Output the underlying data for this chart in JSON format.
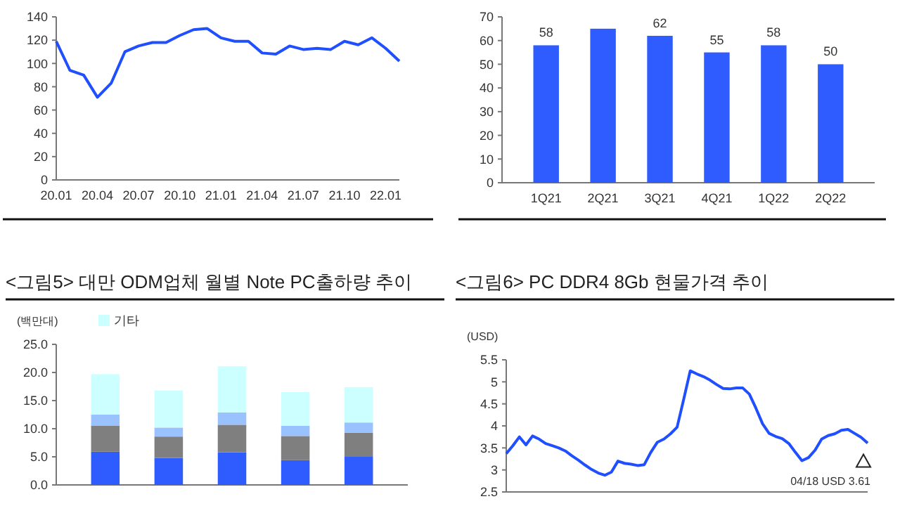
{
  "chart_data": [
    {
      "type": "line",
      "categories": [
        "20.01",
        null,
        null,
        "20.04",
        null,
        null,
        "20.07",
        null,
        null,
        "20.10",
        null,
        null,
        "21.01",
        null,
        null,
        "21.04",
        null,
        null,
        "21.07",
        null,
        null,
        "21.10",
        null,
        null,
        "22.01",
        null
      ],
      "series": [
        {
          "color": "#1f4fff",
          "values": [
            119,
            94,
            90,
            71,
            83,
            110,
            115,
            118,
            118,
            124,
            129,
            130,
            122,
            119,
            119,
            109,
            108,
            115,
            112,
            113,
            112,
            119,
            116,
            122,
            113,
            102
          ]
        }
      ],
      "ylim": [
        0,
        140
      ],
      "yticks": [
        0,
        20,
        40,
        60,
        80,
        100,
        120,
        140
      ],
      "grid": false,
      "legend": false
    },
    {
      "type": "bar",
      "categories": [
        "1Q21",
        "2Q21",
        "3Q21",
        "4Q21",
        "1Q22",
        "2Q22"
      ],
      "values": [
        58,
        65,
        62,
        55,
        58,
        50
      ],
      "color": "#2f5cff",
      "value_labels": [
        "58",
        null,
        "62",
        "55",
        "58",
        "50"
      ],
      "ylim": [
        0,
        70
      ],
      "yticks": [
        0,
        10,
        20,
        30,
        40,
        50,
        60,
        70
      ],
      "grid": false,
      "legend": false
    },
    {
      "type": "bar",
      "title": "<그림5> 대만 ODM업체 월별 Note PC출하량 추이",
      "ylabel": "(백만대)",
      "stacked": true,
      "categories": [
        null,
        null,
        null,
        null,
        null
      ],
      "series": [
        {
          "color": "#2f5cff",
          "values": [
            5.9,
            4.8,
            5.8,
            4.4,
            5.1
          ]
        },
        {
          "color": "#7f7f7f",
          "values": [
            4.6,
            3.8,
            4.9,
            4.3,
            4.2
          ]
        },
        {
          "color": "#99c2ff",
          "values": [
            2.0,
            1.6,
            2.2,
            1.8,
            1.8
          ]
        },
        {
          "name": "기타",
          "color": "#ccffff",
          "values": [
            7.2,
            6.6,
            8.2,
            6.0,
            6.3
          ]
        }
      ],
      "ylim": [
        0,
        25
      ],
      "yticks": [
        {
          "value": 0,
          "label": "0.0"
        },
        {
          "value": 5,
          "label": "5.0"
        },
        {
          "value": 10,
          "label": "10.0"
        },
        {
          "value": 15,
          "label": "15.0"
        },
        {
          "value": 20,
          "label": "20.0"
        },
        {
          "value": 25,
          "label": "25.0"
        }
      ],
      "grid": false,
      "legend": "top"
    },
    {
      "type": "line",
      "title": "<그림6> PC DDR4 8Gb 현물가격 추이",
      "ylabel": "(USD)",
      "categories": [
        null,
        null,
        null,
        null,
        null,
        null,
        null,
        null,
        null,
        null,
        null,
        null,
        null,
        null,
        null,
        null,
        null,
        null,
        null,
        null,
        null,
        null,
        null,
        null,
        null,
        null,
        null,
        null,
        null,
        null,
        null,
        null,
        null,
        null,
        null,
        null,
        null,
        null,
        null,
        null,
        null,
        null,
        null,
        null,
        null,
        null,
        null,
        null,
        null,
        null,
        null,
        null,
        null,
        null,
        null,
        null
      ],
      "series": [
        {
          "color": "#1f4fff",
          "values": [
            3.37,
            3.55,
            3.75,
            3.57,
            3.77,
            3.7,
            3.6,
            3.55,
            3.5,
            3.43,
            3.32,
            3.22,
            3.11,
            3.01,
            2.93,
            2.88,
            2.95,
            3.2,
            3.15,
            3.13,
            3.1,
            3.12,
            3.4,
            3.63,
            3.7,
            3.82,
            3.97,
            4.6,
            5.25,
            5.18,
            5.12,
            5.04,
            4.94,
            4.85,
            4.84,
            4.86,
            4.86,
            4.72,
            4.4,
            4.05,
            3.83,
            3.76,
            3.71,
            3.6,
            3.4,
            3.21,
            3.28,
            3.45,
            3.7,
            3.78,
            3.82,
            3.9,
            3.92,
            3.83,
            3.74,
            3.61
          ]
        }
      ],
      "ylim": [
        2.5,
        5.5
      ],
      "yticks": [
        2.5,
        3,
        3.5,
        4,
        4.5,
        5,
        5.5
      ],
      "grid": false,
      "legend": false,
      "annotations": [
        "04/18  USD 3.61"
      ]
    }
  ]
}
